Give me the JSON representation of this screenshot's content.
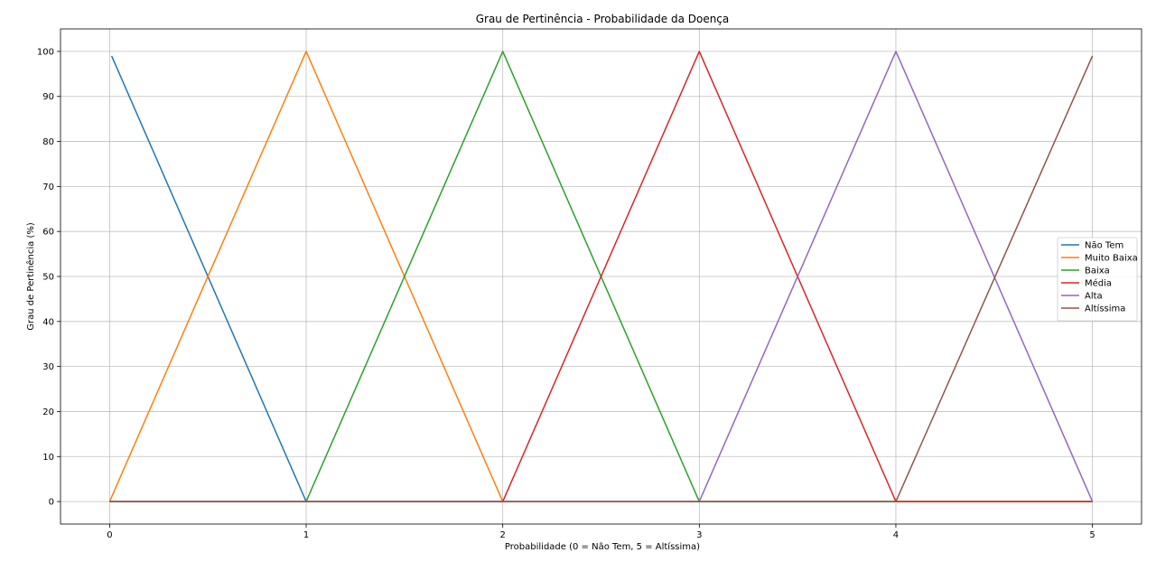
{
  "chart_data": {
    "type": "line",
    "title": "Grau de Pertinência - Probabilidade da Doença",
    "xlabel": "Probabilidade (0 = Não Tem, 5 = Altíssima)",
    "ylabel": "Grau de Pertinência (%)",
    "xlim": [
      -0.25,
      5.25
    ],
    "ylim": [
      -5,
      105
    ],
    "xticks": [
      0,
      1,
      2,
      3,
      4,
      5
    ],
    "yticks": [
      0,
      10,
      20,
      30,
      40,
      50,
      60,
      70,
      80,
      90,
      100
    ],
    "grid": true,
    "legend_position": "center-right",
    "series": [
      {
        "name": "Não Tem",
        "color": "#1f77b4",
        "x": [
          0.01,
          1,
          5
        ],
        "y": [
          99,
          0,
          0
        ]
      },
      {
        "name": "Muito Baixa",
        "color": "#ff7f0e",
        "x": [
          0,
          1,
          2,
          5
        ],
        "y": [
          0,
          100,
          0,
          0
        ]
      },
      {
        "name": "Baixa",
        "color": "#2ca02c",
        "x": [
          0,
          1,
          2,
          3,
          5
        ],
        "y": [
          0,
          0,
          100,
          0,
          0
        ]
      },
      {
        "name": "Média",
        "color": "#d62728",
        "x": [
          0,
          2,
          3,
          4,
          5
        ],
        "y": [
          0,
          0,
          100,
          0,
          0
        ]
      },
      {
        "name": "Alta",
        "color": "#9467bd",
        "x": [
          0,
          3,
          4,
          5
        ],
        "y": [
          0,
          0,
          100,
          0
        ]
      },
      {
        "name": "Altíssima",
        "color": "#8c564b",
        "x": [
          0,
          4,
          5
        ],
        "y": [
          0,
          0,
          99
        ]
      }
    ]
  }
}
